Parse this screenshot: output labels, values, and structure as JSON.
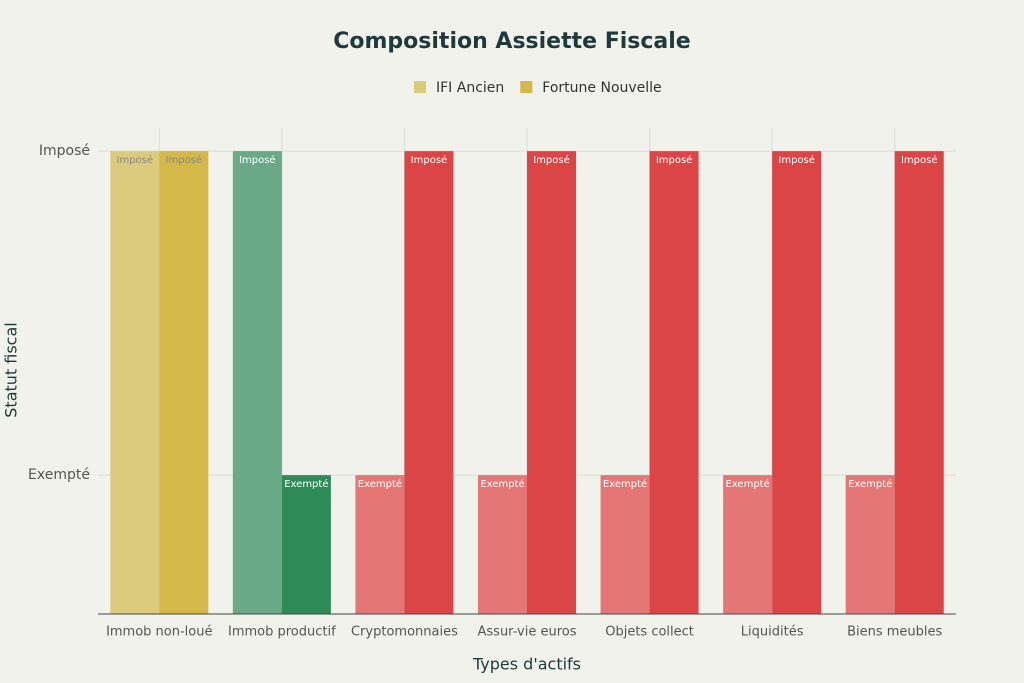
{
  "chart_data": {
    "type": "bar",
    "title": "Composition Assiette Fiscale",
    "x_label": "Types d'actifs",
    "y_label": "Statut fiscal",
    "categories": [
      "Immob non-loué",
      "Immob productif",
      "Cryptomonnaies",
      "Assur-vie euros",
      "Objets collect",
      "Liquidités",
      "Biens meubles"
    ],
    "series": [
      {
        "name": "IFI Ancien",
        "color": "#dccb7c",
        "colors": [
          "#dccb7c",
          "#6aa985",
          "#e47775",
          "#e47775",
          "#e47775",
          "#e47775",
          "#e47775"
        ],
        "values": [
          1,
          1,
          0.3,
          0.3,
          0.3,
          0.3,
          0.3
        ],
        "value_labels": [
          "Imposé",
          "Imposé",
          "Exempté",
          "Exempté",
          "Exempté",
          "Exempté",
          "Exempté"
        ]
      },
      {
        "name": "Fortune Nouvelle",
        "color": "#d4b84a",
        "colors": [
          "#d4b84a",
          "#2e8b57",
          "#db4545",
          "#db4545",
          "#db4545",
          "#db4545",
          "#db4545"
        ],
        "values": [
          1,
          0.3,
          1,
          1,
          1,
          1,
          1
        ],
        "value_labels": [
          "Imposé",
          "Exempté",
          "Imposé",
          "Imposé",
          "Imposé",
          "Imposé",
          "Imposé"
        ]
      }
    ],
    "ylim": [
      0,
      1.05
    ],
    "yticks": [
      {
        "value": 0.3,
        "label": "Exempté"
      },
      {
        "value": 1,
        "label": "Imposé"
      }
    ],
    "grid": true
  }
}
